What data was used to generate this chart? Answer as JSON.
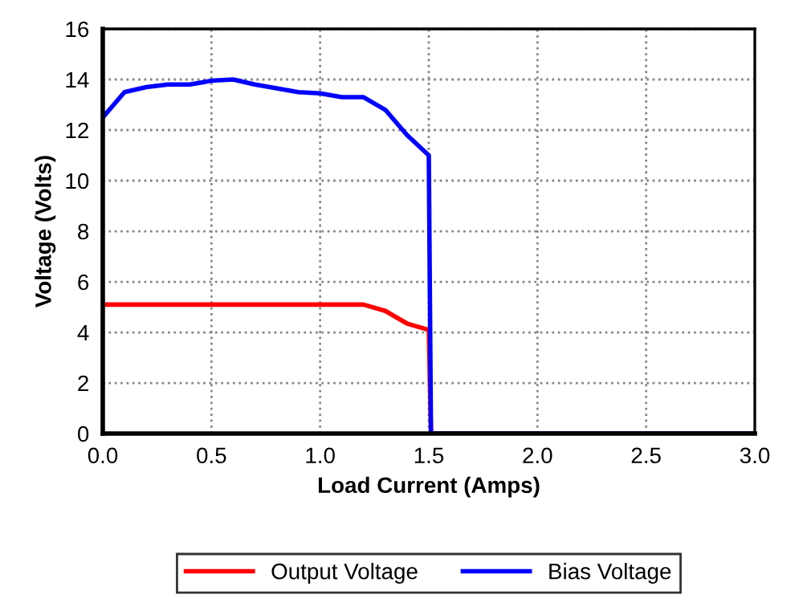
{
  "chart_data": {
    "type": "line",
    "xlabel": "Load Current (Amps)",
    "ylabel": "Voltage (Volts)",
    "xlim": [
      0,
      3
    ],
    "xticks": [
      {
        "value": 0,
        "label": "0.0"
      },
      {
        "value": 0.5,
        "label": "0.5"
      },
      {
        "value": 1,
        "label": "1.0"
      },
      {
        "value": 1.5,
        "label": "1.5"
      },
      {
        "value": 2,
        "label": "2.0"
      },
      {
        "value": 2.5,
        "label": "2.5"
      },
      {
        "value": 3,
        "label": "3.0"
      }
    ],
    "ylim": [
      0,
      16
    ],
    "yticks": [
      0,
      2,
      4,
      6,
      8,
      10,
      12,
      14,
      16
    ],
    "grid": true,
    "legend": "bottom",
    "marker": "none",
    "line_style": "solid",
    "series": [
      {
        "name": "Output Voltage",
        "color": "#ff0000",
        "x": [
          0,
          0.1,
          0.2,
          0.3,
          0.4,
          0.5,
          0.6,
          0.7,
          0.8,
          0.9,
          1.0,
          1.1,
          1.2,
          1.3,
          1.4,
          1.5,
          1.51,
          3.0
        ],
        "values": [
          5.1,
          5.1,
          5.1,
          5.1,
          5.1,
          5.1,
          5.1,
          5.1,
          5.1,
          5.1,
          5.1,
          5.1,
          5.1,
          4.85,
          4.35,
          4.1,
          0,
          0
        ]
      },
      {
        "name": "Bias Voltage",
        "color": "#0000ff",
        "x": [
          0,
          0.1,
          0.2,
          0.3,
          0.4,
          0.5,
          0.6,
          0.7,
          0.8,
          0.9,
          1.0,
          1.1,
          1.2,
          1.3,
          1.4,
          1.5,
          1.51,
          3.0
        ],
        "values": [
          12.5,
          13.5,
          13.7,
          13.8,
          13.8,
          13.95,
          14.0,
          13.8,
          13.65,
          13.5,
          13.45,
          13.3,
          13.3,
          12.8,
          11.8,
          11.0,
          0,
          0
        ]
      }
    ]
  }
}
